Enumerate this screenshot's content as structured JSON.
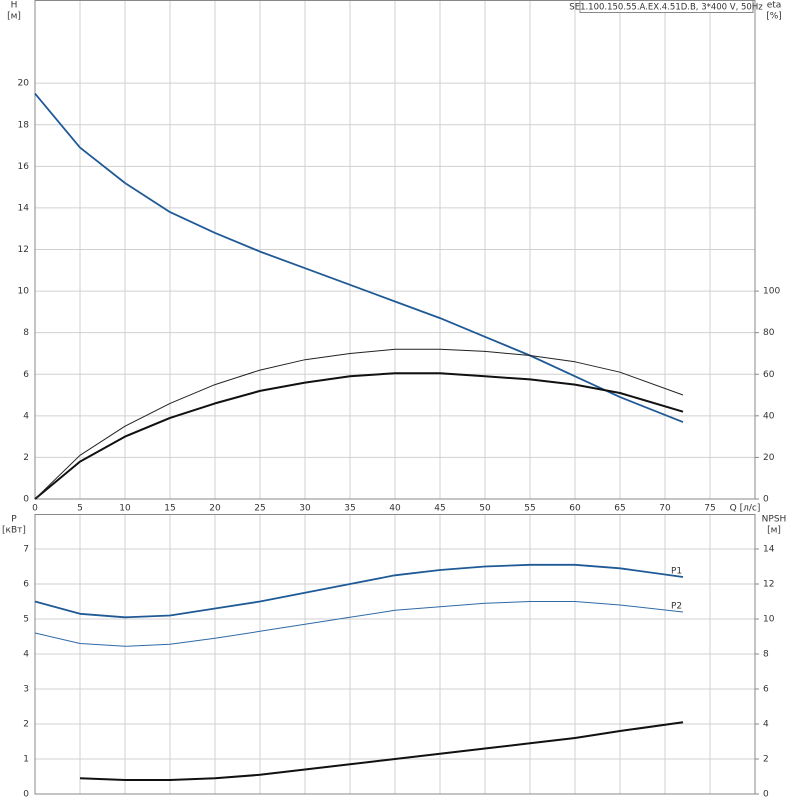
{
  "chart_data": [
    {
      "type": "line",
      "title": "SE1.100.150.55.A.EX.4.51D.B, 3*400 V, 50Hz",
      "ylabel": "H",
      "yunit": "[м]",
      "y2label": "eta",
      "y2unit": "[%]",
      "xlabel": "Q [л/с]",
      "x": [
        0,
        5,
        10,
        15,
        20,
        25,
        30,
        35,
        40,
        45,
        50,
        55,
        60,
        65,
        72
      ],
      "xlim": [
        0,
        80
      ],
      "xticks": [
        0,
        5,
        10,
        15,
        20,
        25,
        30,
        35,
        40,
        45,
        50,
        55,
        60,
        65,
        70,
        75
      ],
      "ylim": [
        0,
        24
      ],
      "yticks": [
        0,
        2,
        4,
        6,
        8,
        10,
        12,
        14,
        16,
        18,
        20
      ],
      "y2lim": [
        0,
        240
      ],
      "y2ticks": [
        0,
        20,
        40,
        60,
        80,
        100
      ],
      "grid": true,
      "show_xtick_labels": true,
      "series": [
        {
          "color": "#1f5a96",
          "values": [
            19.5,
            16.9,
            15.2,
            13.8,
            12.8,
            11.9,
            11.1,
            10.3,
            9.5,
            8.7,
            7.8,
            6.9,
            5.9,
            4.9,
            3.7
          ]
        },
        {
          "color": "#111111",
          "axis": "y2",
          "values": [
            0,
            18,
            30,
            39,
            46,
            52,
            56,
            59,
            60.5,
            60.5,
            59,
            57.5,
            55,
            51,
            42
          ]
        },
        {
          "color": "#222222",
          "axis": "y2",
          "values": [
            0,
            21,
            35,
            46,
            55,
            62,
            67,
            70,
            72,
            72,
            71,
            69,
            66,
            61,
            50
          ]
        }
      ]
    },
    {
      "type": "line",
      "ylabel": "P",
      "yunit": "[кВт]",
      "y2label": "NPSH",
      "y2unit": "[м]",
      "x": [
        0,
        5,
        10,
        15,
        20,
        25,
        30,
        35,
        40,
        45,
        50,
        55,
        60,
        65,
        72
      ],
      "xlim": [
        0,
        80
      ],
      "xticks": [
        0,
        5,
        10,
        15,
        20,
        25,
        30,
        35,
        40,
        45,
        50,
        55,
        60,
        65,
        70,
        75
      ],
      "ylim": [
        0,
        8
      ],
      "yticks": [
        0,
        1,
        2,
        3,
        4,
        5,
        6,
        7
      ],
      "y2lim": [
        0,
        16
      ],
      "y2ticks": [
        0,
        2,
        4,
        6,
        8,
        10,
        12,
        14
      ],
      "grid": true,
      "show_xtick_labels": false,
      "series": [
        {
          "name": "P1",
          "color": "#1f5a96",
          "values": [
            5.5,
            5.15,
            5.05,
            5.1,
            5.3,
            5.5,
            5.75,
            6.0,
            6.25,
            6.4,
            6.5,
            6.55,
            6.55,
            6.45,
            6.2
          ]
        },
        {
          "name": "P2",
          "color": "#2f6aa6",
          "values": [
            4.6,
            4.3,
            4.22,
            4.28,
            4.45,
            4.65,
            4.85,
            5.05,
            5.25,
            5.35,
            5.45,
            5.5,
            5.5,
            5.4,
            5.2
          ]
        },
        {
          "color": "#111111",
          "axis": "y2",
          "values": [
            null,
            0.9,
            0.8,
            0.8,
            0.9,
            1.1,
            1.4,
            1.7,
            2.0,
            2.3,
            2.6,
            2.9,
            3.2,
            3.6,
            4.1
          ]
        }
      ]
    }
  ]
}
